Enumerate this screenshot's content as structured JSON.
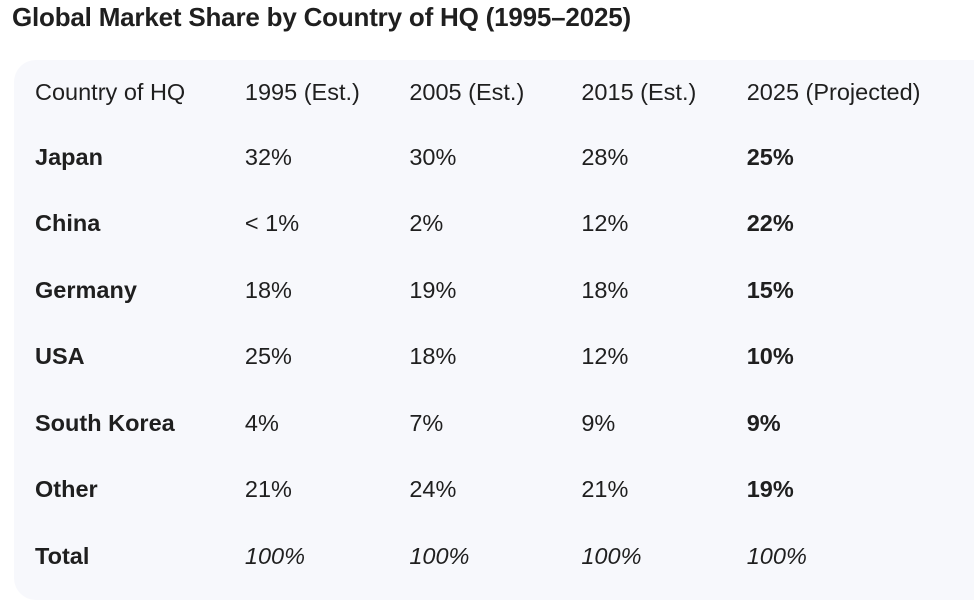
{
  "title": "Global Market Share by Country of HQ (1995–2025)",
  "table": {
    "headers": [
      "Country of HQ",
      "1995 (Est.)",
      "2005 (Est.)",
      "2015 (Est.)",
      "2025 (Projected)"
    ],
    "rows": [
      [
        "Japan",
        "32%",
        "30%",
        "28%",
        "25%"
      ],
      [
        "China",
        "< 1%",
        "2%",
        "12%",
        "22%"
      ],
      [
        "Germany",
        "18%",
        "19%",
        "18%",
        "15%"
      ],
      [
        "USA",
        "25%",
        "18%",
        "12%",
        "10%"
      ],
      [
        "South Korea",
        "4%",
        "7%",
        "9%",
        "9%"
      ],
      [
        "Other",
        "21%",
        "24%",
        "21%",
        "19%"
      ]
    ],
    "total": [
      "Total",
      "100%",
      "100%",
      "100%",
      "100%"
    ]
  },
  "colors": {
    "table_background": "#f7f8fc",
    "text": "#1f1f1f"
  }
}
